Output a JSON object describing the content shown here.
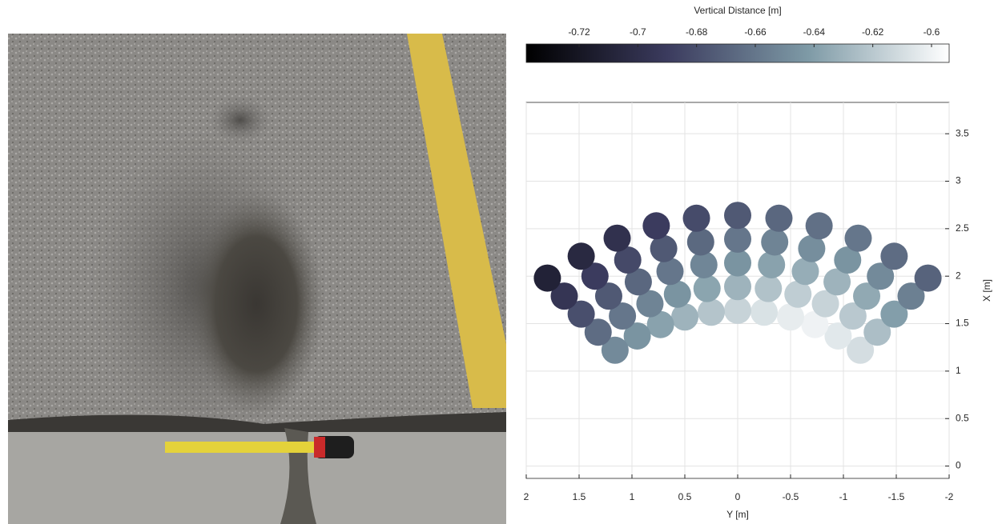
{
  "chart_data": {
    "type": "scatter",
    "xlabel": "Y [m]",
    "ylabel": "X [m]",
    "xlim": [
      2,
      -2
    ],
    "ylim": [
      -0.13,
      3.83
    ],
    "xticks": [
      2,
      1.5,
      1,
      0.5,
      0,
      -0.5,
      -1,
      -1.5,
      -2
    ],
    "yticks": [
      0,
      0.5,
      1,
      1.5,
      2,
      2.5,
      3,
      3.5
    ],
    "yaxis_side": "right",
    "grid": true,
    "colorbar": {
      "label": "Vertical Distance [m]",
      "lim": [
        -0.738,
        -0.594
      ],
      "ticks": [
        -0.72,
        -0.7,
        -0.68,
        -0.66,
        -0.64,
        -0.62,
        -0.6
      ],
      "colormap": [
        "#000000",
        "#3b3b5e",
        "#7e9aa6",
        "#ffffff"
      ]
    },
    "x": [
      -1.16,
      -0.95,
      -0.73,
      -0.5,
      -0.25,
      0,
      0.25,
      0.5,
      0.73,
      0.95,
      1.16,
      -1.32,
      -1.09,
      -0.83,
      -0.57,
      -0.29,
      0,
      0.29,
      0.57,
      0.83,
      1.09,
      1.32,
      -1.48,
      -1.22,
      -0.94,
      -0.64,
      -0.32,
      0,
      0.32,
      0.64,
      0.94,
      1.22,
      1.48,
      -1.64,
      -1.35,
      -1.04,
      -0.7,
      -0.35,
      0,
      0.35,
      0.7,
      1.04,
      1.35,
      1.64,
      -1.8,
      -1.48,
      -1.14,
      -0.77,
      -0.39,
      0,
      0.39,
      0.77,
      1.14,
      1.48,
      1.8
    ],
    "y": [
      1.22,
      1.37,
      1.49,
      1.57,
      1.62,
      1.64,
      1.62,
      1.57,
      1.49,
      1.37,
      1.22,
      1.41,
      1.58,
      1.71,
      1.81,
      1.87,
      1.89,
      1.87,
      1.81,
      1.71,
      1.58,
      1.41,
      1.6,
      1.79,
      1.94,
      2.05,
      2.12,
      2.14,
      2.12,
      2.05,
      1.94,
      1.79,
      1.6,
      1.79,
      2,
      2.17,
      2.29,
      2.36,
      2.39,
      2.36,
      2.29,
      2.17,
      2,
      1.79,
      1.98,
      2.21,
      2.4,
      2.53,
      2.61,
      2.64,
      2.61,
      2.53,
      2.4,
      2.21,
      1.98
    ],
    "values": [
      -0.61,
      -0.605,
      -0.6,
      -0.603,
      -0.608,
      -0.615,
      -0.622,
      -0.63,
      -0.638,
      -0.645,
      -0.65,
      -0.625,
      -0.62,
      -0.615,
      -0.618,
      -0.623,
      -0.63,
      -0.637,
      -0.645,
      -0.653,
      -0.66,
      -0.665,
      -0.64,
      -0.635,
      -0.63,
      -0.633,
      -0.638,
      -0.645,
      -0.652,
      -0.66,
      -0.668,
      -0.675,
      -0.68,
      -0.655,
      -0.65,
      -0.645,
      -0.648,
      -0.653,
      -0.66,
      -0.667,
      -0.675,
      -0.683,
      -0.69,
      -0.695,
      -0.67,
      -0.665,
      -0.66,
      -0.663,
      -0.668,
      -0.675,
      -0.682,
      -0.69,
      -0.698,
      -0.705,
      -0.71
    ]
  }
}
